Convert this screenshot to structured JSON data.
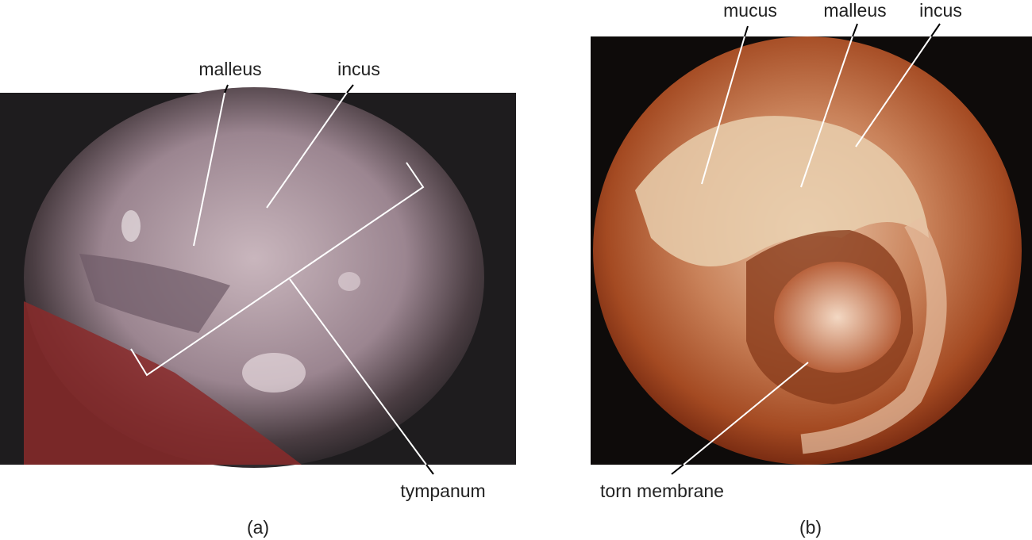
{
  "panels": [
    {
      "caption": "(a)",
      "labels": [
        "malleus",
        "incus",
        "tympanum"
      ]
    },
    {
      "caption": "(b)",
      "labels": [
        "mucus",
        "malleus",
        "incus",
        "torn membrane"
      ]
    }
  ]
}
